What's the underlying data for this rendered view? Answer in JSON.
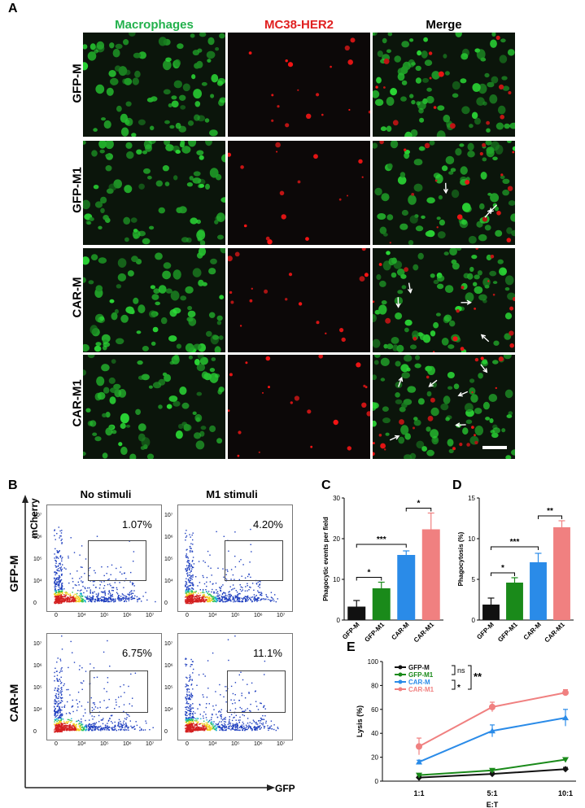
{
  "panel_A": {
    "letter": "A",
    "columns": [
      "Macrophages",
      "MC38-HER2",
      "Merge"
    ],
    "column_colors": [
      "#22b14c",
      "#e02020",
      "#000000"
    ],
    "rows": [
      "GFP-M",
      "GFP-M1",
      "CAR-M",
      "CAR-M1"
    ]
  },
  "panel_B": {
    "letter": "B",
    "col_heads": [
      "No stimuli",
      "M1 stimuli"
    ],
    "row_heads": [
      "GFP-M",
      "CAR-M"
    ],
    "y_axis_label": "mCherry",
    "x_axis_label": "GFP",
    "percentages": [
      "1.07%",
      "4.20%",
      "6.75%",
      "11.1%"
    ],
    "tick_labels_x": [
      "0",
      "10⁴",
      "10⁵",
      "10⁶",
      "10⁷"
    ],
    "tick_labels_y": [
      "0",
      "10⁴",
      "10⁵",
      "10⁶",
      "10⁷"
    ]
  },
  "panel_C": {
    "letter": "C",
    "ylabel": "Phagocytic events per field",
    "yticks": [
      "0",
      "10",
      "20",
      "30"
    ],
    "sig": [
      "*",
      "***",
      "*"
    ]
  },
  "panel_D": {
    "letter": "D",
    "ylabel": "Phagocytosis (%)",
    "yticks": [
      "0",
      "5",
      "10",
      "15"
    ],
    "sig": [
      "*",
      "***",
      "**"
    ]
  },
  "panel_E": {
    "letter": "E",
    "ylabel": "Lysis (%)",
    "xlabel": "E:T",
    "yticks": [
      "0",
      "20",
      "40",
      "60",
      "80",
      "100"
    ],
    "sig": [
      "ns",
      "**",
      "*"
    ]
  },
  "chart_data": [
    {
      "type": "bar",
      "panel": "C",
      "categories": [
        "GFP-M",
        "GFP-M1",
        "CAR-M",
        "CAR-M1"
      ],
      "values": [
        3.3,
        7.8,
        16.0,
        22.3
      ],
      "errors": [
        1.5,
        1.5,
        1.0,
        4.0
      ],
      "colors": [
        "#111111",
        "#1a8a1a",
        "#2a8be8",
        "#f08080"
      ],
      "ylabel": "Phagocytic events per field",
      "ylim": [
        0,
        30
      ]
    },
    {
      "type": "bar",
      "panel": "D",
      "categories": [
        "GFP-M",
        "GFP-M1",
        "CAR-M",
        "CAR-M1"
      ],
      "values": [
        1.9,
        4.6,
        7.1,
        11.4
      ],
      "errors": [
        0.8,
        0.6,
        1.1,
        0.8
      ],
      "colors": [
        "#111111",
        "#1a8a1a",
        "#2a8be8",
        "#f08080"
      ],
      "ylabel": "Phagocytosis (%)",
      "ylim": [
        0,
        15
      ]
    },
    {
      "type": "line",
      "panel": "E",
      "categories": [
        "1:1",
        "5:1",
        "10:1"
      ],
      "series": [
        {
          "name": "GFP-M",
          "values": [
            3,
            6,
            10
          ],
          "errors": [
            1,
            1.5,
            1.5
          ],
          "color": "#111111",
          "marker": "diamond"
        },
        {
          "name": "GFP-M1",
          "values": [
            5,
            9,
            18
          ],
          "errors": [
            1,
            1.5,
            1.5
          ],
          "color": "#1a8a1a",
          "marker": "triangle-down"
        },
        {
          "name": "CAR-M",
          "values": [
            16,
            42,
            53
          ],
          "errors": [
            1.5,
            5,
            7
          ],
          "color": "#2a8be8",
          "marker": "triangle-up"
        },
        {
          "name": "CAR-M1",
          "values": [
            29,
            62,
            74
          ],
          "errors": [
            7,
            4,
            2.5
          ],
          "color": "#f08080",
          "marker": "circle"
        }
      ],
      "ylabel": "Lysis (%)",
      "xlabel": "E:T",
      "ylim": [
        0,
        100
      ]
    }
  ]
}
